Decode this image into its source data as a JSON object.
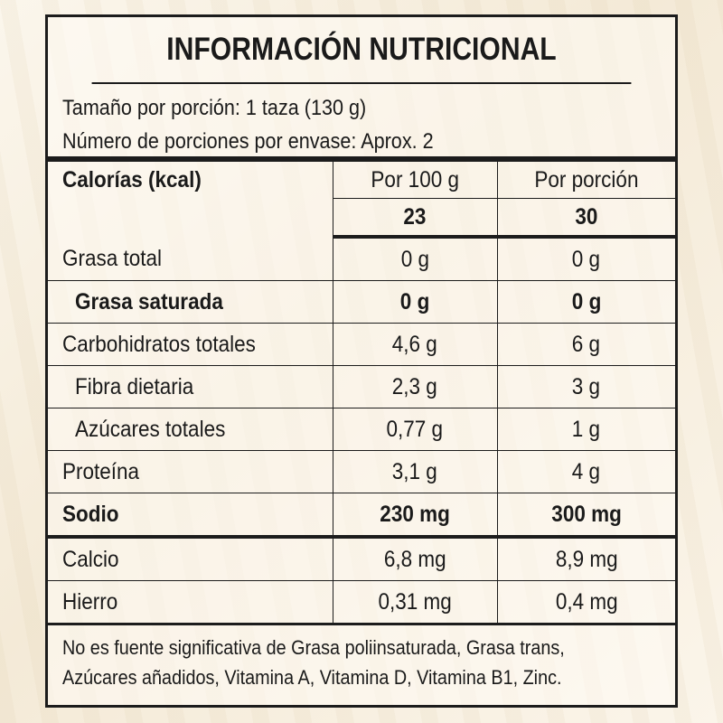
{
  "title": "INFORMACIÓN NUTRICIONAL",
  "serving": {
    "size": "Tamaño por porción: 1 taza (130 g)",
    "count": "Número de porciones por envase: Aprox. 2"
  },
  "calories": {
    "label": "Calorías (kcal)",
    "col_per100_header": "Por 100 g",
    "col_portion_header": "Por porción",
    "per100": "23",
    "portion": "30"
  },
  "nutrients": [
    {
      "name": "Grasa total",
      "per100": "0 g",
      "portion": "0 g"
    },
    {
      "name": "Grasa saturada",
      "per100": "0 g",
      "portion": "0 g"
    },
    {
      "name": "Carbohidratos totales",
      "per100": "4,6 g",
      "portion": "6 g"
    },
    {
      "name": "Fibra dietaria",
      "per100": "2,3 g",
      "portion": "3 g"
    },
    {
      "name": "Azúcares totales",
      "per100": "0,77 g",
      "portion": "1 g"
    },
    {
      "name": "Proteína",
      "per100": "3,1 g",
      "portion": "4 g"
    },
    {
      "name": "Sodio",
      "per100": "230 mg",
      "portion": "300 mg"
    },
    {
      "name": "Calcio",
      "per100": "6,8 mg",
      "portion": "8,9 mg"
    },
    {
      "name": "Hierro",
      "per100": "0,31 mg",
      "portion": "0,4 mg"
    }
  ],
  "footnote": {
    "line1": "No es fuente significativa de Grasa poliinsaturada, Grasa trans,",
    "line2": "Azúcares añadidos, Vitamina A, Vitamina D, Vitamina B1, Zinc."
  },
  "colors": {
    "border": "#1c1c1c",
    "background": "#f6eddc"
  }
}
